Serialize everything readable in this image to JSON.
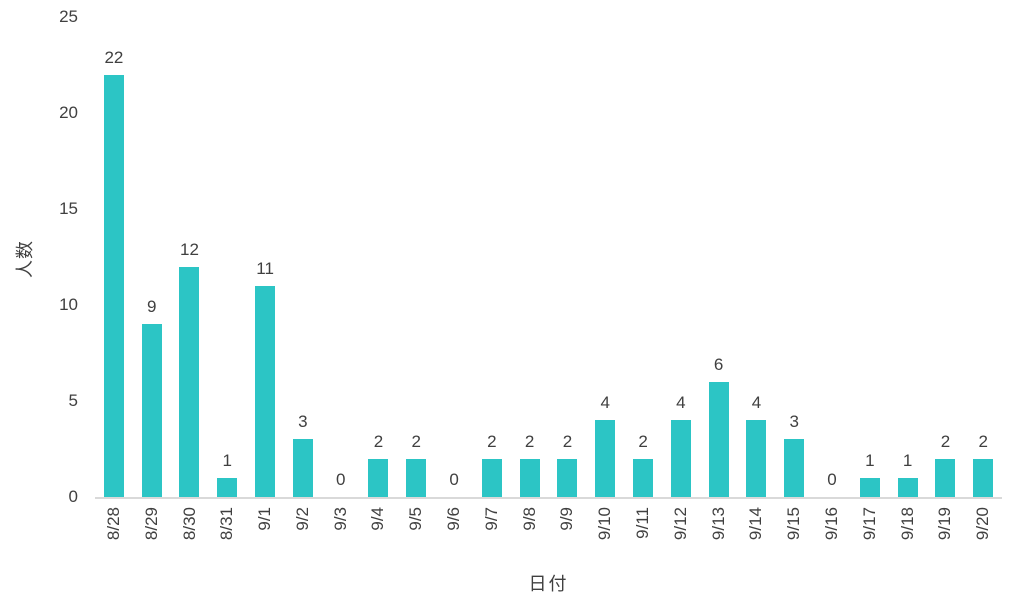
{
  "chart_data": {
    "type": "bar",
    "title": "",
    "categories": [
      "8/28",
      "8/29",
      "8/30",
      "8/31",
      "9/1",
      "9/2",
      "9/3",
      "9/4",
      "9/5",
      "9/6",
      "9/7",
      "9/8",
      "9/9",
      "9/10",
      "9/11",
      "9/12",
      "9/13",
      "9/14",
      "9/15",
      "9/16",
      "9/17",
      "9/18",
      "9/19",
      "9/20"
    ],
    "values": [
      22,
      9,
      12,
      1,
      11,
      3,
      0,
      2,
      2,
      0,
      2,
      2,
      2,
      4,
      2,
      4,
      6,
      4,
      3,
      0,
      1,
      1,
      2,
      2
    ],
    "xlabel": "日付",
    "ylabel": "人数",
    "ylim": [
      0,
      25
    ],
    "yticks": [
      0,
      5,
      10,
      15,
      20,
      25
    ],
    "grid": false,
    "legend": "none",
    "bar_color": "#2cc5c5",
    "text_color": "#404040",
    "axis_line_color": "#d9d9d9"
  }
}
